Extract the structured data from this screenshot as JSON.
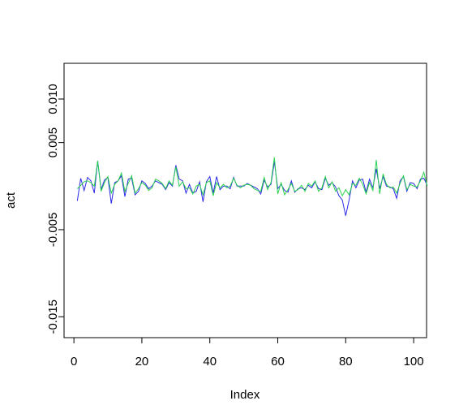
{
  "chart_data": {
    "type": "line",
    "x_label": "Index",
    "y_label": "act",
    "x": [
      1,
      2,
      3,
      4,
      5,
      6,
      7,
      8,
      9,
      10,
      11,
      12,
      13,
      14,
      15,
      16,
      17,
      18,
      19,
      20,
      21,
      22,
      23,
      24,
      25,
      26,
      27,
      28,
      29,
      30,
      31,
      32,
      33,
      34,
      35,
      36,
      37,
      38,
      39,
      40,
      41,
      42,
      43,
      44,
      45,
      46,
      47,
      48,
      49,
      50,
      51,
      52,
      53,
      54,
      55,
      56,
      57,
      58,
      59,
      60,
      61,
      62,
      63,
      64,
      65,
      66,
      67,
      68,
      69,
      70,
      71,
      72,
      73,
      74,
      75,
      76,
      77,
      78,
      79,
      80,
      81,
      82,
      83,
      84,
      85,
      86,
      87,
      88,
      89,
      90,
      91,
      92,
      93,
      94,
      95,
      96,
      97,
      98,
      99,
      100,
      101,
      102,
      103,
      104
    ],
    "series": [
      {
        "color": "#2a2ae6",
        "values": [
          -0.0017,
          0.0009,
          -0.0005,
          0.001,
          0.0006,
          -0.0008,
          0.0029,
          -0.0004,
          0.0007,
          0.001,
          -0.002,
          0.0004,
          0.0006,
          0.0012,
          -0.0012,
          0.0008,
          0.0009,
          -0.001,
          -0.0006,
          0.0006,
          0.0003,
          -0.0003,
          0.0,
          0.0006,
          0.0004,
          0.0002,
          -0.0004,
          0.0004,
          0.0,
          0.0024,
          0.0008,
          0.0006,
          -0.0008,
          0.0002,
          -0.0008,
          -0.0006,
          0.0005,
          -0.0018,
          0.0005,
          0.0011,
          -0.0008,
          0.0011,
          -0.0004,
          0.0,
          0.0,
          -0.0003,
          0.001,
          0.0,
          0.0,
          0.0,
          0.0003,
          0.0001,
          -0.0001,
          -0.0003,
          -0.0009,
          0.0007,
          -0.0001,
          0.0002,
          0.0028,
          -0.0003,
          0.0002,
          -0.0005,
          -0.0007,
          0.0006,
          -0.0007,
          -0.0003,
          -0.0002,
          -0.0004,
          0.0001,
          -0.0002,
          0.0005,
          -0.0003,
          -0.0004,
          0.0009,
          0.0001,
          0.0004,
          -0.0001,
          -0.0011,
          -0.0016,
          -0.0034,
          -0.0016,
          0.0006,
          -0.0002,
          0.0007,
          0.0008,
          -0.0007,
          0.0008,
          -0.0002,
          0.002,
          -0.0003,
          0.0011,
          0.0,
          -0.0001,
          -0.0003,
          -0.0014,
          0.0006,
          0.0011,
          -0.0006,
          0.0004,
          0.0003,
          -0.0003,
          0.0008,
          0.0009,
          0.0001
        ]
      },
      {
        "color": "#2bd24e",
        "values": [
          -0.0003,
          0.0001,
          0.0005,
          0.0006,
          0.0004,
          0.0,
          0.0029,
          -0.0006,
          0.0004,
          0.0011,
          -0.0008,
          0.0002,
          0.0006,
          0.0015,
          -0.0006,
          0.0003,
          0.0012,
          -0.0008,
          -0.0003,
          0.0004,
          0.0001,
          -0.0005,
          -0.0002,
          0.0008,
          0.0006,
          0.0003,
          -0.0003,
          0.0006,
          0.0001,
          0.0022,
          0.0,
          0.0005,
          -0.0003,
          -0.0002,
          -0.0009,
          0.0,
          0.0002,
          -0.001,
          0.0004,
          0.0006,
          -0.0011,
          0.0004,
          -0.0002,
          0.0002,
          -0.0002,
          0.0,
          0.0009,
          0.0001,
          -0.0002,
          0.0001,
          0.0002,
          0.0001,
          -0.0003,
          -0.0005,
          -0.0006,
          0.001,
          -0.0004,
          0.0004,
          0.0033,
          -0.0009,
          0.0004,
          -0.001,
          -0.0004,
          0.0003,
          -0.0006,
          -0.0004,
          0.0001,
          -0.0006,
          0.0003,
          0.0,
          0.0006,
          -0.0006,
          -0.0002,
          0.0011,
          -0.0002,
          0.0005,
          -0.0006,
          -0.0002,
          -0.0011,
          -0.0004,
          -0.001,
          0.0003,
          0.0001,
          0.0009,
          0.0002,
          -0.0009,
          0.0004,
          -0.0005,
          0.003,
          -0.0009,
          0.0014,
          0.0002,
          -0.0002,
          -0.0001,
          -0.0008,
          0.0003,
          0.0012,
          -0.0004,
          0.0002,
          0.0,
          -0.0001,
          0.0006,
          0.0016,
          0.0
        ]
      }
    ],
    "xlim": [
      -2.9,
      103.8
    ],
    "ylim": [
      -0.0174,
      0.0141
    ],
    "xticks": [
      0,
      20,
      40,
      60,
      80,
      100
    ],
    "yticks": [
      {
        "value": 0.01,
        "label": "0.010"
      },
      {
        "value": 0.005,
        "label": "0.005"
      },
      {
        "value": -0.005,
        "label": "-0.005"
      },
      {
        "value": -0.015,
        "label": "-0.015"
      }
    ]
  }
}
